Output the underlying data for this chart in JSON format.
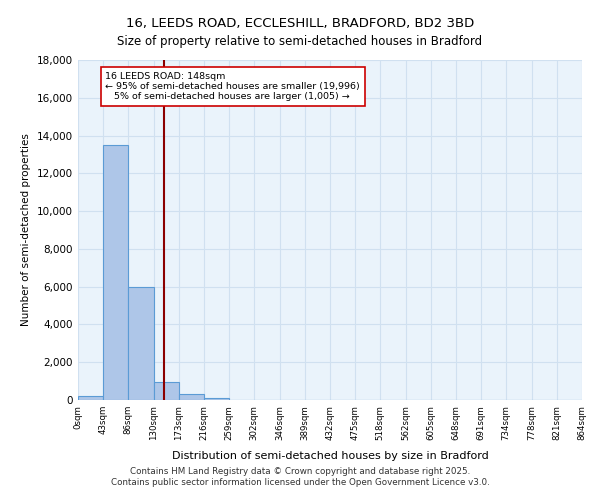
{
  "title_line1": "16, LEEDS ROAD, ECCLESHILL, BRADFORD, BD2 3BD",
  "title_line2": "Size of property relative to semi-detached houses in Bradford",
  "xlabel": "Distribution of semi-detached houses by size in Bradford",
  "ylabel": "Number of semi-detached properties",
  "bar_values": [
    200,
    13500,
    6000,
    950,
    300,
    100,
    0,
    0,
    0,
    0,
    0,
    0,
    0,
    0,
    0,
    0,
    0,
    0,
    0,
    0
  ],
  "bin_edges": [
    0,
    43,
    86,
    130,
    173,
    216,
    259,
    302,
    346,
    389,
    432,
    475,
    518,
    562,
    605,
    648,
    691,
    734,
    778,
    821,
    864
  ],
  "tick_labels": [
    "0sqm",
    "43sqm",
    "86sqm",
    "130sqm",
    "173sqm",
    "216sqm",
    "259sqm",
    "302sqm",
    "346sqm",
    "389sqm",
    "432sqm",
    "475sqm",
    "518sqm",
    "562sqm",
    "605sqm",
    "648sqm",
    "691sqm",
    "734sqm",
    "778sqm",
    "821sqm",
    "864sqm"
  ],
  "bar_color": "#aec6e8",
  "bar_edge_color": "#5b9bd5",
  "grid_color": "#d0e0f0",
  "background_color": "#eaf3fb",
  "vline_x": 148,
  "vline_color": "#8b0000",
  "annotation_text": "16 LEEDS ROAD: 148sqm\n← 95% of semi-detached houses are smaller (19,996)\n   5% of semi-detached houses are larger (1,005) →",
  "annotation_box_color": "#ffffff",
  "annotation_box_edge": "#cc0000",
  "ylim": [
    0,
    18000
  ],
  "yticks": [
    0,
    2000,
    4000,
    6000,
    8000,
    10000,
    12000,
    14000,
    16000,
    18000
  ],
  "footer_line1": "Contains HM Land Registry data © Crown copyright and database right 2025.",
  "footer_line2": "Contains public sector information licensed under the Open Government Licence v3.0."
}
